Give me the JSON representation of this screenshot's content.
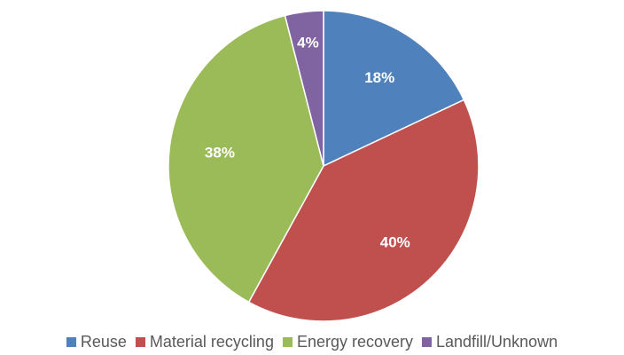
{
  "chart_data": {
    "type": "pie",
    "title": "",
    "categories": [
      "Reuse",
      "Material recycling",
      "Energy recovery",
      "Landfill/Unknown"
    ],
    "values": [
      18,
      40,
      38,
      4
    ],
    "labels": [
      "18%",
      "40%",
      "38%",
      "4%"
    ],
    "colors": [
      "#4F81BD",
      "#C0504D",
      "#9BBB59",
      "#8064A2"
    ],
    "start_angle_deg": 0,
    "direction": "clockwise",
    "legend_position": "bottom"
  }
}
